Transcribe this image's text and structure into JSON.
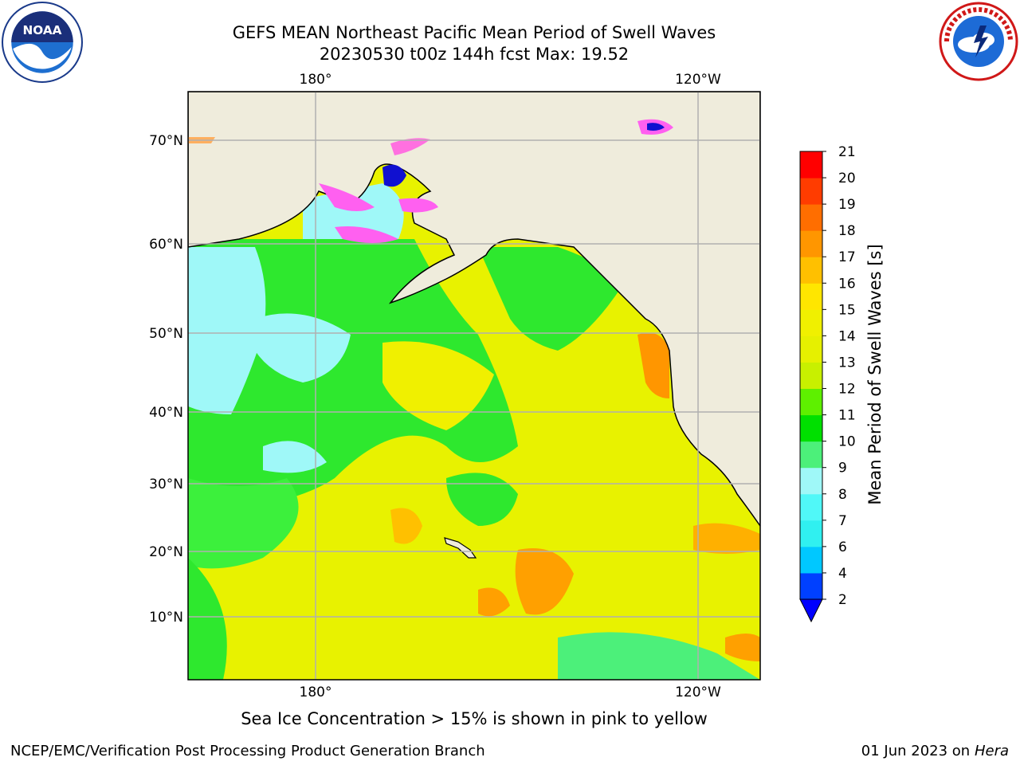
{
  "header": {
    "title_line1": "GEFS MEAN Northeast Pacific Mean Period of Swell Waves",
    "title_line2": "20230530 t00z 144h fcst   Max: 19.52"
  },
  "logos": {
    "left": "noaa-logo",
    "right": "nws-logo"
  },
  "map": {
    "longitude_labels": [
      "180°",
      "120°W"
    ],
    "latitude_labels": [
      "70°N",
      "60°N",
      "50°N",
      "40°N",
      "30°N",
      "20°N",
      "10°N"
    ],
    "land_color": "#efecdc",
    "grid_color": "#b0b0b0"
  },
  "colorbar": {
    "label": "Mean Period of Swell Waves [s]",
    "ticks": [
      "2",
      "4",
      "6",
      "7",
      "8",
      "9",
      "10",
      "11",
      "12",
      "13",
      "14",
      "15",
      "16",
      "17",
      "18",
      "19",
      "20",
      "21"
    ],
    "colors": [
      "#0040ff",
      "#00c8ff",
      "#30f0f0",
      "#50f8f8",
      "#9ff8f8",
      "#4cf07a",
      "#00e000",
      "#5ef000",
      "#c8f000",
      "#e6f000",
      "#f0f000",
      "#ffe600",
      "#ffc000",
      "#ff9600",
      "#ff6e00",
      "#ff3c00",
      "#ff0000"
    ],
    "extend_color": "#0000ff"
  },
  "footer": {
    "ice_note": "Sea Ice Concentration > 15% is shown in pink to yellow",
    "credit": "NCEP/EMC/Verification Post Processing Product Generation Branch",
    "run_date": "01 Jun 2023 on",
    "host": "Hera"
  }
}
